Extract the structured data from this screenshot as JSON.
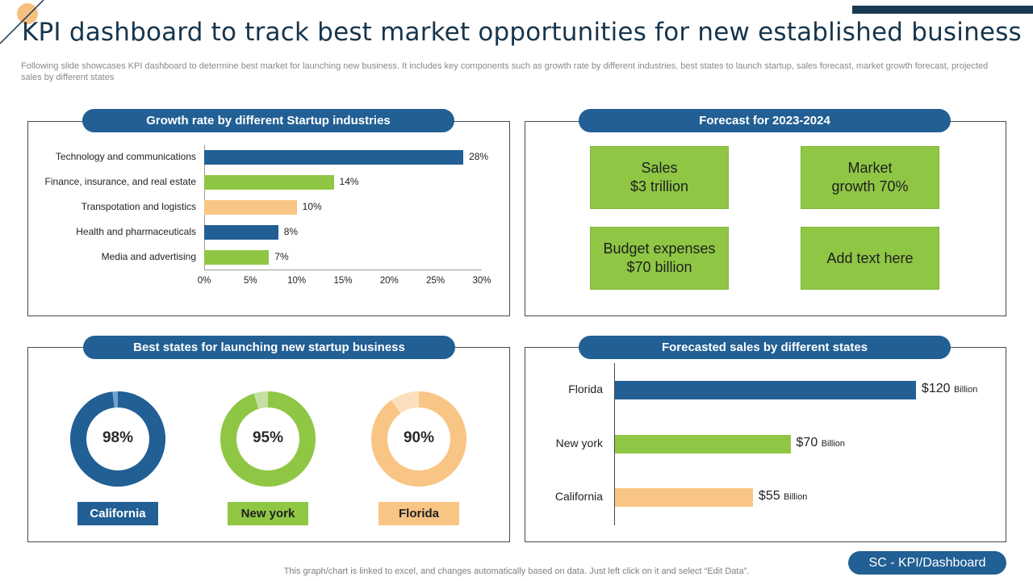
{
  "colors": {
    "dark_blue": "#215f94",
    "green": "#8fc744",
    "peach": "#f9c584",
    "light_blue": "#6fa3d1",
    "light_green": "#c6e0a4",
    "light_peach": "#fce0bd"
  },
  "page": {
    "title": "KPI dashboard to track best market opportunities for new established business",
    "subtitle": "Following slide showcases KPI dashboard to determine best market for launching new business. It includes key components such as growth rate by different industries, best states to launch startup, sales forecast, market growth forecast, projected sales by different states",
    "footer_note": "This graph/chart is linked to excel, and changes automatically based on data. Just left click on it and select “Edit Data”.",
    "footer_badge": "SC - KPI/Dashboard"
  },
  "growth_panel": {
    "header": "Growth rate by different Startup industries"
  },
  "forecast_panel": {
    "header": "Forecast for 2023-2024",
    "kpis": [
      {
        "text": "Sales\n$3 trillion"
      },
      {
        "text": "Market\ngrowth 70%"
      },
      {
        "text": "Budget expenses\n$70 billion"
      },
      {
        "text": "Add text here"
      }
    ]
  },
  "states_panel": {
    "header": "Best states for launching new startup business"
  },
  "sales_panel": {
    "header": "Forecasted sales by different states"
  },
  "chart_data": [
    {
      "type": "bar",
      "orientation": "horizontal",
      "title": "Growth rate by different Startup industries",
      "categories": [
        "Technology and communications",
        "Finance, insurance, and  real estate",
        "Transpotation and logistics",
        "Health and pharmaceuticals",
        "Media and advertising"
      ],
      "values": [
        28,
        14,
        10,
        8,
        7
      ],
      "value_labels": [
        "28%",
        "14%",
        "10%",
        "8%",
        "7%"
      ],
      "bar_colors": [
        "#215f94",
        "#8fc744",
        "#f9c584",
        "#215f94",
        "#8fc744"
      ],
      "xlim": [
        0,
        30
      ],
      "xticks": [
        "0%",
        "5%",
        "10%",
        "15%",
        "20%",
        "25%",
        "30%"
      ],
      "xlabel": "",
      "ylabel": ""
    },
    {
      "type": "pie",
      "variant": "donut",
      "title": "Best states for launching new startup business",
      "items": [
        {
          "state": "California",
          "value": 98,
          "label": "98%",
          "color": "#215f94",
          "rest_color": "#6fa3d1",
          "label_bg": "#215f94",
          "label_fg": "#ffffff"
        },
        {
          "state": "New york",
          "value": 95,
          "label": "95%",
          "color": "#8fc744",
          "rest_color": "#c6e0a4",
          "label_bg": "#8fc744",
          "label_fg": "#1f1f1f"
        },
        {
          "state": "Florida",
          "value": 90,
          "label": "90%",
          "color": "#f9c584",
          "rest_color": "#fce0bd",
          "label_bg": "#f9c584",
          "label_fg": "#1f1f1f"
        }
      ]
    },
    {
      "type": "bar",
      "orientation": "horizontal",
      "title": "Forecasted sales by different states",
      "categories": [
        "Florida",
        "New york",
        "California"
      ],
      "values": [
        120,
        70,
        55
      ],
      "amount_labels": [
        "$120",
        "$70",
        "$55"
      ],
      "unit_label": "Billion",
      "bar_colors": [
        "#215f94",
        "#8fc744",
        "#f9c584"
      ],
      "xlim": [
        0,
        130
      ]
    }
  ]
}
